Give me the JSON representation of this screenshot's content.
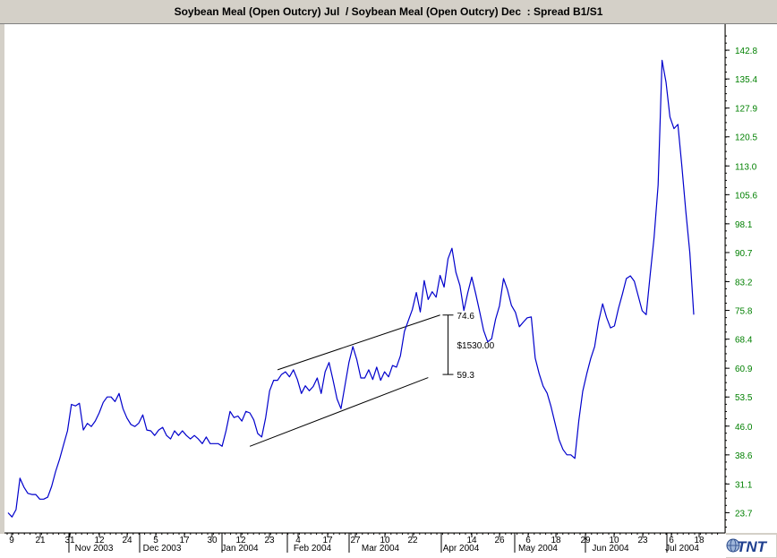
{
  "chart_data": {
    "type": "line",
    "title": "Soybean Meal (Open Outcry) Jul  / Soybean Meal (Open Outcry) Dec  : Spread B1/S1",
    "xlabel": "",
    "ylabel": "",
    "ylim": [
      18.5,
      149.5
    ],
    "yticks": [
      "142.8",
      "135.4",
      "127.9",
      "120.5",
      "113.0",
      "105.6",
      "98.1",
      "90.7",
      "83.2",
      "75.8",
      "68.4",
      "60.9",
      "53.5",
      "46.0",
      "38.6",
      "31.1",
      "23.7"
    ],
    "x_day_ticks": [
      "9",
      "21",
      "31",
      "12",
      "24",
      "5",
      "17",
      "30",
      "12",
      "23",
      "4",
      "17",
      "27",
      "10",
      "22",
      "14",
      "26",
      "6",
      "18",
      "29",
      "10",
      "23",
      "6",
      "18"
    ],
    "x_month_labels": [
      "Nov 2003",
      "Dec 2003",
      "Jan 2004",
      "Feb 2004",
      "Mar 2004",
      "Apr 2004",
      "May 2004",
      "Jun 2004",
      "Jul 2004"
    ],
    "grid": false,
    "series": [
      {
        "color": "#0000cc",
        "values": [
          23.7,
          22.6,
          24.5,
          32.6,
          30.3,
          28.7,
          28.4,
          28.4,
          27.2,
          27.2,
          27.7,
          30.5,
          34.3,
          37.5,
          41.2,
          44.8,
          51.6,
          51.2,
          51.9,
          45.0,
          46.7,
          45.9,
          47.3,
          49.4,
          52.1,
          53.5,
          53.5,
          52.3,
          54.4,
          50.5,
          48.1,
          46.4,
          45.9,
          46.8,
          48.9,
          45.0,
          44.8,
          43.6,
          45.0,
          45.7,
          43.6,
          42.7,
          44.8,
          43.6,
          44.8,
          43.6,
          42.7,
          43.6,
          42.7,
          41.5,
          43.2,
          41.5,
          41.5,
          41.5,
          40.8,
          44.8,
          49.8,
          48.2,
          48.6,
          47.3,
          49.8,
          49.4,
          47.6,
          44.1,
          43.2,
          48.2,
          55.1,
          57.8,
          57.8,
          59.3,
          60.0,
          58.7,
          60.5,
          58.0,
          54.4,
          56.4,
          55.1,
          56.2,
          58.4,
          54.4,
          60.0,
          62.4,
          57.8,
          53.0,
          50.5,
          56.5,
          62.4,
          66.5,
          63.1,
          58.4,
          58.4,
          60.5,
          58.0,
          61.2,
          57.8,
          60.0,
          58.7,
          61.6,
          61.2,
          64.1,
          70.4,
          73.2,
          76.0,
          80.4,
          75.4,
          83.5,
          78.6,
          80.6,
          79.2,
          84.8,
          81.8,
          89.1,
          91.8,
          85.6,
          82.2,
          75.8,
          80.4,
          84.4,
          80.0,
          75.4,
          70.6,
          67.7,
          68.5,
          73.5,
          77.0,
          84.0,
          81.1,
          77.1,
          75.3,
          71.6,
          72.8,
          73.9,
          74.1,
          63.5,
          59.5,
          56.3,
          54.5,
          51.0,
          46.8,
          42.5,
          40.0,
          38.6,
          38.6,
          37.7,
          47.4,
          55.0,
          59.5,
          63.4,
          66.5,
          72.9,
          77.5,
          74.0,
          71.3,
          71.8,
          76.3,
          80.0,
          84.0,
          84.7,
          83.3,
          79.5,
          75.7,
          74.7,
          84.9,
          94.6,
          108.1,
          140.2,
          134.6,
          125.6,
          122.6,
          123.7,
          113.0,
          101.4,
          90.7,
          74.7
        ]
      }
    ],
    "channel": {
      "upper": {
        "from": [
          68,
          60.5
        ],
        "to": [
          109,
          74.6
        ]
      },
      "lower": {
        "from": [
          61,
          40.8
        ],
        "to": [
          106,
          58.5
        ]
      }
    },
    "measure": {
      "top": "74.6",
      "bottom": "59.3",
      "amount": "$1530.00",
      "top_value": 74.6,
      "bottom_value": 59.3,
      "x_index": 111
    },
    "logo": "TNT"
  }
}
